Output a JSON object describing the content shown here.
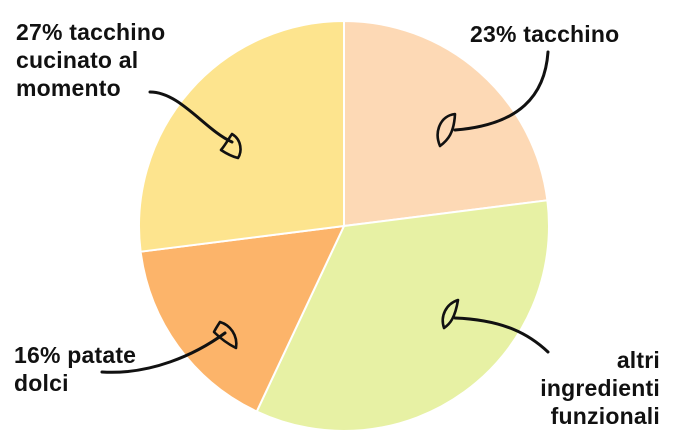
{
  "chart_data": {
    "type": "pie",
    "slices": [
      {
        "label": "23% tacchino",
        "value": 23,
        "color": "#FDD9B5"
      },
      {
        "label": "altri\ningredienti\nfunzionali",
        "value": 34,
        "color": "#E7F1A4"
      },
      {
        "label": "16% patate\ndolci",
        "value": 16,
        "color": "#FCB46A"
      },
      {
        "label": "27% tacchino\ncucinato al\nmomento",
        "value": 27,
        "color": "#FDE48E"
      }
    ],
    "start_angle_deg": 0,
    "direction": "clockwise"
  }
}
